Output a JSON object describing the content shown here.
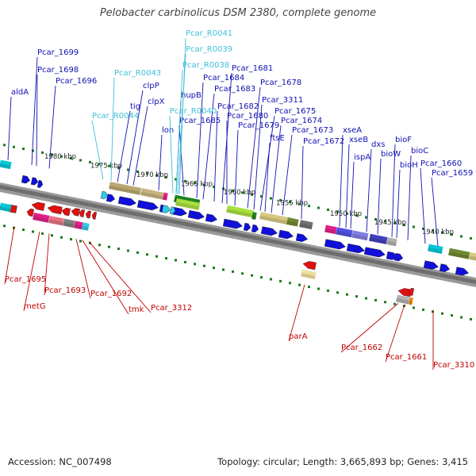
{
  "title": "Pelobacter carbinolicus DSM 2380, complete genome",
  "footer": {
    "accession": "Accession: NC_007498",
    "topology": "Topology: circular; Length: 3,665,893 bp; Genes: 3,415"
  },
  "colors": {
    "plus_label": "#1010b0",
    "rna_label": "#40c0d8",
    "minus_label": "#c00000",
    "backbone": "#888888",
    "dots": "#1a7a1a"
  },
  "kbp_ticks": [
    "1980 kbp",
    "1975 kbp",
    "1970 kbp",
    "1965 kbp",
    "1960 kbp",
    "1955 kbp",
    "1950 kbp",
    "1945 kbp",
    "1940 kbp"
  ],
  "plus_genes": [
    "aldA",
    "Pcar_1699",
    "Pcar_1698",
    "Pcar_1696",
    "tig",
    "clpP",
    "clpX",
    "lon",
    "hupB",
    "Pcar_1685",
    "Pcar_1684",
    "Pcar_1683",
    "Pcar_1682",
    "Pcar_1681",
    "Pcar_1680",
    "Pcar_1679",
    "Pcar_3311",
    "Pcar_1678",
    "Pcar_1675",
    "ftsE",
    "Pcar_1674",
    "Pcar_1673",
    "Pcar_1672",
    "xseA",
    "xseB",
    "ispA",
    "dxs",
    "bioW",
    "bioF",
    "bioH",
    "bioC",
    "Pcar_1660",
    "Pcar_1659"
  ],
  "rna_genes": [
    "Pcar_R0041",
    "Pcar_R0039",
    "Pcar_R0038",
    "Pcar_R0043",
    "Pcar_R0044",
    "Pcar_R0040"
  ],
  "minus_genes": [
    "Pcar_1695",
    "metG",
    "Pcar_1693",
    "Pcar_1692",
    "tmk",
    "Pcar_3312",
    "parA",
    "Pcar_1662",
    "Pcar_1661",
    "Pcar_3310"
  ]
}
